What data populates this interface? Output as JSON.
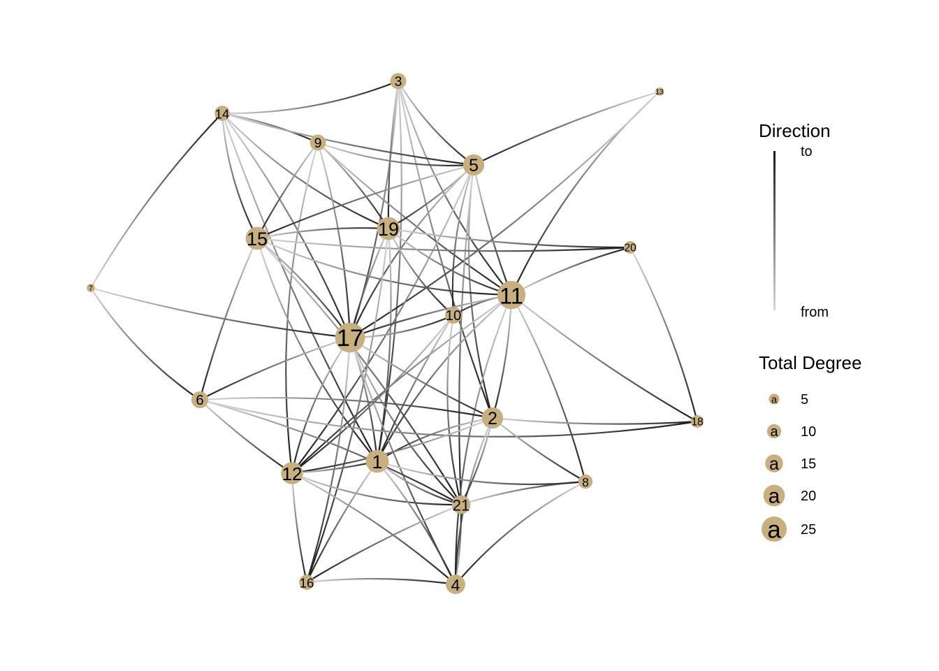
{
  "legend": {
    "direction": {
      "title": "Direction",
      "to_label": "to",
      "from_label": "from"
    },
    "degree": {
      "title": "Total Degree",
      "glyph": "a",
      "entries": [
        "5",
        "10",
        "15",
        "20",
        "25"
      ]
    }
  },
  "colors": {
    "node": "#c8b07e",
    "edge_to": "#1a1a1a",
    "edge_from": "#d9d9d9"
  },
  "nodes": [
    {
      "id": "1",
      "degree": 20
    },
    {
      "id": "2",
      "degree": 18
    },
    {
      "id": "3",
      "degree": 12
    },
    {
      "id": "4",
      "degree": 16
    },
    {
      "id": "5",
      "degree": 18
    },
    {
      "id": "6",
      "degree": 13
    },
    {
      "id": "7",
      "degree": 3
    },
    {
      "id": "8",
      "degree": 10
    },
    {
      "id": "9",
      "degree": 12
    },
    {
      "id": "10",
      "degree": 13
    },
    {
      "id": "11",
      "degree": 26
    },
    {
      "id": "12",
      "degree": 19
    },
    {
      "id": "13",
      "degree": 3
    },
    {
      "id": "14",
      "degree": 11
    },
    {
      "id": "15",
      "degree": 20
    },
    {
      "id": "16",
      "degree": 11
    },
    {
      "id": "17",
      "degree": 28
    },
    {
      "id": "18",
      "degree": 8
    },
    {
      "id": "19",
      "degree": 20
    },
    {
      "id": "20",
      "degree": 8
    },
    {
      "id": "21",
      "degree": 15
    }
  ],
  "edges": [
    [
      "14",
      "3"
    ],
    [
      "3",
      "17"
    ],
    [
      "3",
      "19"
    ],
    [
      "3",
      "5"
    ],
    [
      "3",
      "1"
    ],
    [
      "3",
      "2"
    ],
    [
      "3",
      "11"
    ],
    [
      "14",
      "9"
    ],
    [
      "14",
      "5"
    ],
    [
      "14",
      "15"
    ],
    [
      "14",
      "17"
    ],
    [
      "14",
      "1"
    ],
    [
      "14",
      "19"
    ],
    [
      "7",
      "14"
    ],
    [
      "9",
      "15"
    ],
    [
      "9",
      "5"
    ],
    [
      "9",
      "17"
    ],
    [
      "9",
      "11"
    ],
    [
      "9",
      "12"
    ],
    [
      "9",
      "19"
    ],
    [
      "13",
      "5"
    ],
    [
      "13",
      "11"
    ],
    [
      "13",
      "17"
    ],
    [
      "5",
      "15"
    ],
    [
      "5",
      "17"
    ],
    [
      "5",
      "19"
    ],
    [
      "5",
      "11"
    ],
    [
      "5",
      "2"
    ],
    [
      "5",
      "12"
    ],
    [
      "5",
      "21"
    ],
    [
      "5",
      "10"
    ],
    [
      "15",
      "19"
    ],
    [
      "15",
      "20"
    ],
    [
      "15",
      "11"
    ],
    [
      "15",
      "17"
    ],
    [
      "15",
      "6"
    ],
    [
      "15",
      "1"
    ],
    [
      "15",
      "21"
    ],
    [
      "19",
      "20"
    ],
    [
      "19",
      "11"
    ],
    [
      "19",
      "1"
    ],
    [
      "19",
      "17"
    ],
    [
      "19",
      "10"
    ],
    [
      "19",
      "16"
    ],
    [
      "7",
      "17"
    ],
    [
      "7",
      "6"
    ],
    [
      "11",
      "20"
    ],
    [
      "11",
      "17"
    ],
    [
      "11",
      "10"
    ],
    [
      "11",
      "2"
    ],
    [
      "11",
      "12"
    ],
    [
      "11",
      "1"
    ],
    [
      "11",
      "8"
    ],
    [
      "11",
      "18"
    ],
    [
      "11",
      "4"
    ],
    [
      "20",
      "18"
    ],
    [
      "17",
      "6"
    ],
    [
      "17",
      "12"
    ],
    [
      "17",
      "1"
    ],
    [
      "17",
      "2"
    ],
    [
      "17",
      "21"
    ],
    [
      "17",
      "16"
    ],
    [
      "17",
      "4"
    ],
    [
      "17",
      "10"
    ],
    [
      "10",
      "12"
    ],
    [
      "10",
      "1"
    ],
    [
      "10",
      "21"
    ],
    [
      "6",
      "2"
    ],
    [
      "6",
      "12"
    ],
    [
      "6",
      "18"
    ],
    [
      "6",
      "21"
    ],
    [
      "2",
      "18"
    ],
    [
      "2",
      "1"
    ],
    [
      "2",
      "12"
    ],
    [
      "2",
      "8"
    ],
    [
      "2",
      "4"
    ],
    [
      "2",
      "21"
    ],
    [
      "12",
      "1"
    ],
    [
      "12",
      "21"
    ],
    [
      "12",
      "4"
    ],
    [
      "12",
      "16"
    ],
    [
      "1",
      "21"
    ],
    [
      "1",
      "4"
    ],
    [
      "1",
      "16"
    ],
    [
      "1",
      "8"
    ],
    [
      "21",
      "8"
    ],
    [
      "21",
      "16"
    ],
    [
      "8",
      "4"
    ],
    [
      "16",
      "4"
    ],
    [
      "4",
      "21"
    ]
  ]
}
